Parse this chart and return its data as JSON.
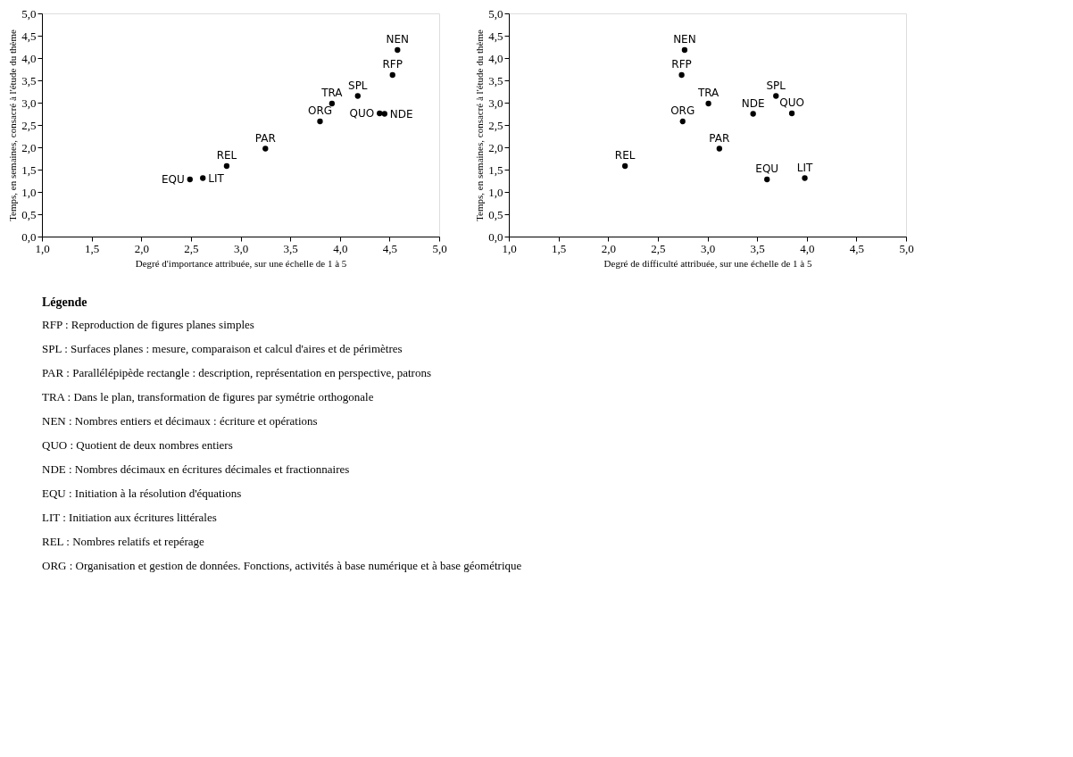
{
  "chart_data": [
    {
      "type": "scatter",
      "xlabel": "Degré d'importance attribuée, sur une échelle de 1 à 5",
      "ylabel": "Temps, en semaines, consacré à l'étude du thème",
      "xlim": [
        1.0,
        5.0
      ],
      "ylim": [
        0.0,
        5.0
      ],
      "xticks": [
        {
          "value": 1.0,
          "label": "1,0"
        },
        {
          "value": 1.5,
          "label": "1,5"
        },
        {
          "value": 2.0,
          "label": "2,0"
        },
        {
          "value": 2.5,
          "label": "2,5"
        },
        {
          "value": 3.0,
          "label": "3,0"
        },
        {
          "value": 3.5,
          "label": "3,5"
        },
        {
          "value": 4.0,
          "label": "4,0"
        },
        {
          "value": 4.5,
          "label": "4,5"
        },
        {
          "value": 5.0,
          "label": "5,0"
        }
      ],
      "yticks": [
        {
          "value": 0.0,
          "label": "0,0"
        },
        {
          "value": 0.5,
          "label": "0,5"
        },
        {
          "value": 1.0,
          "label": "1,0"
        },
        {
          "value": 1.5,
          "label": "1,5"
        },
        {
          "value": 2.0,
          "label": "2,0"
        },
        {
          "value": 2.5,
          "label": "2,5"
        },
        {
          "value": 3.0,
          "label": "3,0"
        },
        {
          "value": 3.5,
          "label": "3,5"
        },
        {
          "value": 4.0,
          "label": "4,0"
        },
        {
          "value": 4.5,
          "label": "4,5"
        },
        {
          "value": 5.0,
          "label": "5,0"
        }
      ],
      "series": [
        {
          "color": "#000000",
          "x": [
            4.58,
            4.53,
            4.18,
            3.92,
            3.8,
            4.4,
            4.45,
            3.25,
            2.86,
            2.49,
            2.62
          ],
          "values": [
            4.18,
            3.62,
            3.15,
            2.98,
            2.58,
            2.76,
            2.75,
            1.97,
            1.58,
            1.28,
            1.31
          ]
        }
      ],
      "marker": "circle",
      "grid": false,
      "annotations": [
        {
          "text": "NEN",
          "x": 4.58,
          "y": 4.18
        },
        {
          "text": "RFP",
          "x": 4.53,
          "y": 3.62
        },
        {
          "text": "SPL",
          "x": 4.18,
          "y": 3.15
        },
        {
          "text": "TRA",
          "x": 3.92,
          "y": 2.98
        },
        {
          "text": "ORG",
          "x": 3.8,
          "y": 2.58
        },
        {
          "text": "QUO",
          "x": 4.4,
          "y": 2.76
        },
        {
          "text": "NDE",
          "x": 4.45,
          "y": 2.75
        },
        {
          "text": "PAR",
          "x": 3.25,
          "y": 1.97
        },
        {
          "text": "REL",
          "x": 2.86,
          "y": 1.58
        },
        {
          "text": "EQU",
          "x": 2.49,
          "y": 1.28
        },
        {
          "text": "LIT",
          "x": 2.62,
          "y": 1.31
        }
      ]
    },
    {
      "type": "scatter",
      "xlabel": "Degré de difficulté attribuée, sur une échelle de 1 à 5",
      "ylabel": "Temps, en semaines, consacré à l'étude du thème",
      "xlim": [
        1.0,
        5.0
      ],
      "ylim": [
        0.0,
        5.0
      ],
      "xticks": [
        {
          "value": 1.0,
          "label": "1,0"
        },
        {
          "value": 1.5,
          "label": "1,5"
        },
        {
          "value": 2.0,
          "label": "2,0"
        },
        {
          "value": 2.5,
          "label": "2,5"
        },
        {
          "value": 3.0,
          "label": "3,0"
        },
        {
          "value": 3.5,
          "label": "3,5"
        },
        {
          "value": 4.0,
          "label": "4,0"
        },
        {
          "value": 4.5,
          "label": "4,5"
        },
        {
          "value": 5.0,
          "label": "5,0"
        }
      ],
      "yticks": [
        {
          "value": 0.0,
          "label": "0,0"
        },
        {
          "value": 0.5,
          "label": "0,5"
        },
        {
          "value": 1.0,
          "label": "1,0"
        },
        {
          "value": 1.5,
          "label": "1,5"
        },
        {
          "value": 2.0,
          "label": "2,0"
        },
        {
          "value": 2.5,
          "label": "2,5"
        },
        {
          "value": 3.0,
          "label": "3,0"
        },
        {
          "value": 3.5,
          "label": "3,5"
        },
        {
          "value": 4.0,
          "label": "4,0"
        },
        {
          "value": 4.5,
          "label": "4,5"
        },
        {
          "value": 5.0,
          "label": "5,0"
        }
      ],
      "series": [
        {
          "color": "#000000",
          "x": [
            2.77,
            2.74,
            3.69,
            3.01,
            2.75,
            3.85,
            3.46,
            3.12,
            2.17,
            3.6,
            3.98
          ],
          "values": [
            4.18,
            3.62,
            3.15,
            2.98,
            2.58,
            2.76,
            2.75,
            1.97,
            1.58,
            1.28,
            1.31
          ]
        }
      ],
      "marker": "circle",
      "grid": false,
      "annotations": [
        {
          "text": "NEN",
          "x": 2.77,
          "y": 4.18
        },
        {
          "text": "RFP",
          "x": 2.74,
          "y": 3.62
        },
        {
          "text": "SPL",
          "x": 3.69,
          "y": 3.15
        },
        {
          "text": "TRA",
          "x": 3.01,
          "y": 2.98
        },
        {
          "text": "ORG",
          "x": 2.75,
          "y": 2.58
        },
        {
          "text": "QUO",
          "x": 3.85,
          "y": 2.76
        },
        {
          "text": "NDE",
          "x": 3.46,
          "y": 2.75
        },
        {
          "text": "PAR",
          "x": 3.12,
          "y": 1.97
        },
        {
          "text": "REL",
          "x": 2.17,
          "y": 1.58
        },
        {
          "text": "EQU",
          "x": 3.6,
          "y": 1.28
        },
        {
          "text": "LIT",
          "x": 3.98,
          "y": 1.31
        }
      ]
    },
    {
      "type": "other",
      "title": "Légende",
      "annotations": [
        "RFP : Reproduction de figures planes simples",
        "SPL : Surfaces planes : mesure, comparaison et calcul d'aires et de périmètres",
        "PAR : Parallélépipède rectangle : description, représentation en perspective, patrons",
        "TRA : Dans le plan, transformation de figures par symétrie orthogonale",
        "NEN : Nombres entiers et décimaux : écriture et opérations",
        "QUO : Quotient de deux nombres entiers",
        "NDE : Nombres décimaux en écritures décimales et fractionnaires",
        "EQU : Initiation à la résolution d'équations",
        "LIT : Initiation aux écritures littérales",
        "REL : Nombres relatifs et repérage",
        "ORG : Organisation et gestion de données. Fonctions, activités à base numérique et à base géométrique"
      ]
    }
  ]
}
